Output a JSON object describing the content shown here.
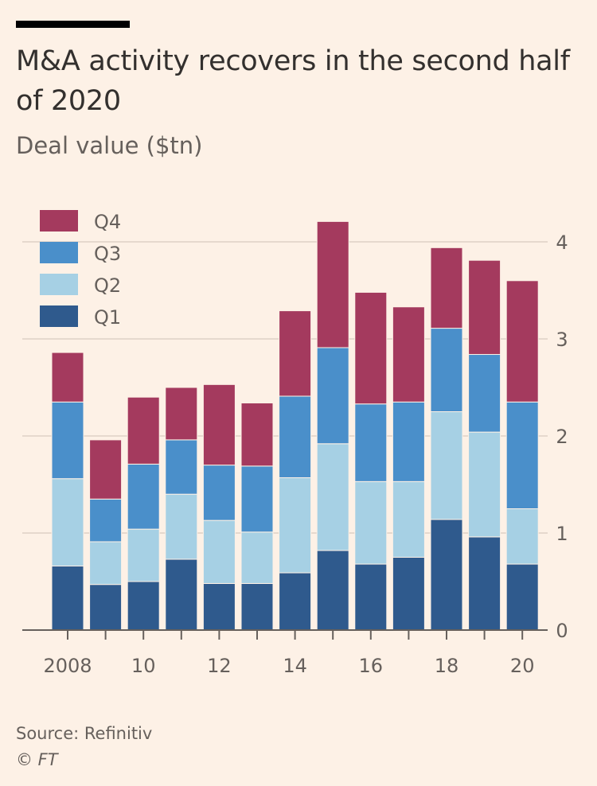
{
  "header": {
    "title": "M&A activity recovers in the second half of 2020",
    "subtitle": "Deal value ($tn)"
  },
  "footer": {
    "source": "Source: Refinitiv",
    "credit": "© FT"
  },
  "chart_data": {
    "type": "bar",
    "stacked": true,
    "title": "M&A activity recovers in the second half of 2020",
    "ylabel": "Deal value ($tn)",
    "xlabel": "",
    "years": [
      2008,
      2009,
      2010,
      2011,
      2012,
      2013,
      2014,
      2015,
      2016,
      2017,
      2018,
      2019,
      2020
    ],
    "xtick_labels": [
      "2008",
      "10",
      "12",
      "14",
      "16",
      "18",
      "20"
    ],
    "xtick_years": [
      2008,
      2010,
      2012,
      2014,
      2016,
      2018,
      2020
    ],
    "ylim": [
      0,
      4.4
    ],
    "yticks": [
      0,
      1,
      2,
      3,
      4
    ],
    "ytick_labels": [
      "0",
      "1",
      "2",
      "3",
      "4"
    ],
    "legend_position": "top-left",
    "series": [
      {
        "name": "Q1",
        "color": "#2f5a8d",
        "values": [
          0.66,
          0.47,
          0.5,
          0.73,
          0.48,
          0.48,
          0.59,
          0.82,
          0.68,
          0.75,
          1.14,
          0.96,
          0.68
        ]
      },
      {
        "name": "Q2",
        "color": "#a6d0e4",
        "values": [
          0.9,
          0.44,
          0.54,
          0.67,
          0.65,
          0.53,
          0.98,
          1.1,
          0.85,
          0.78,
          1.11,
          1.08,
          0.57
        ]
      },
      {
        "name": "Q3",
        "color": "#4a8fca",
        "values": [
          0.79,
          0.44,
          0.67,
          0.56,
          0.57,
          0.68,
          0.84,
          0.99,
          0.8,
          0.82,
          0.86,
          0.8,
          1.1
        ]
      },
      {
        "name": "Q4",
        "color": "#a43a5e",
        "values": [
          0.51,
          0.61,
          0.69,
          0.54,
          0.83,
          0.65,
          0.88,
          1.3,
          1.15,
          0.98,
          0.83,
          0.97,
          1.25
        ]
      }
    ]
  }
}
